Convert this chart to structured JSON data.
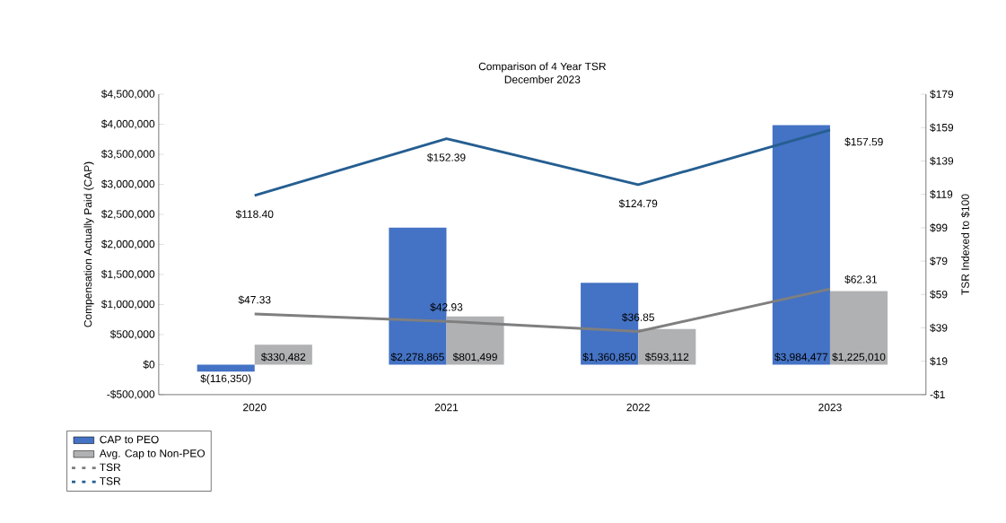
{
  "chart_data": {
    "type": "bar",
    "title": "Comparison of 4 Year TSR",
    "subtitle": "December 2023",
    "ylabel": "Compensation Actually Paid (CAP)",
    "y2label": "TSR Indexed to $100",
    "categories": [
      "2020",
      "2021",
      "2022",
      "2023"
    ],
    "series": [
      {
        "name": "CAP to PEO",
        "color": "#4472c4",
        "values": [
          -116350,
          2278865,
          1360850,
          3984477
        ],
        "value_labels": [
          "$(116,350)",
          "$2,278,865",
          "$1,360,850",
          "$3,984,477"
        ]
      },
      {
        "name": "Avg. Cap to Non-PEO",
        "color": "#b0b1b3",
        "values": [
          330482,
          801499,
          593112,
          1225010
        ],
        "value_labels": [
          "$330,482",
          "$801,499",
          "$593,112",
          "$1,225,010"
        ]
      },
      {
        "name": "TSR",
        "type": "line",
        "axis": "y2",
        "color": "#7f7f7f",
        "values": [
          47.33,
          42.93,
          36.85,
          62.31
        ],
        "value_labels": [
          "$47.33",
          "$42.93",
          "$36.85",
          "$62.31"
        ]
      },
      {
        "name": "TSR",
        "type": "line",
        "axis": "y2",
        "color": "#255e91",
        "values": [
          118.4,
          152.39,
          124.79,
          157.59
        ],
        "value_labels": [
          "$118.40",
          "$152.39",
          "$124.79",
          "$157.59"
        ]
      }
    ],
    "ylim": [
      -500000,
      4500000
    ],
    "yticks": [
      {
        "value": -500000,
        "label": "-$500,000"
      },
      {
        "value": 0,
        "label": "$0"
      },
      {
        "value": 500000,
        "label": "$500,000"
      },
      {
        "value": 1000000,
        "label": "$1,000,000"
      },
      {
        "value": 1500000,
        "label": "$1,500,000"
      },
      {
        "value": 2000000,
        "label": "$2,000,000"
      },
      {
        "value": 2500000,
        "label": "$2,500,000"
      },
      {
        "value": 3000000,
        "label": "$3,000,000"
      },
      {
        "value": 3500000,
        "label": "$3,500,000"
      },
      {
        "value": 4000000,
        "label": "$4,000,000"
      },
      {
        "value": 4500000,
        "label": "$4,500,000"
      }
    ],
    "y2lim": [
      -1,
      179
    ],
    "y2ticks": [
      {
        "value": -1,
        "label": "-$1"
      },
      {
        "value": 19,
        "label": "$19"
      },
      {
        "value": 39,
        "label": "$39"
      },
      {
        "value": 59,
        "label": "$59"
      },
      {
        "value": 79,
        "label": "$79"
      },
      {
        "value": 99,
        "label": "$99"
      },
      {
        "value": 119,
        "label": "$119"
      },
      {
        "value": 139,
        "label": "$139"
      },
      {
        "value": 159,
        "label": "$159"
      },
      {
        "value": 179,
        "label": "$179"
      }
    ],
    "legend": "bottom left"
  }
}
